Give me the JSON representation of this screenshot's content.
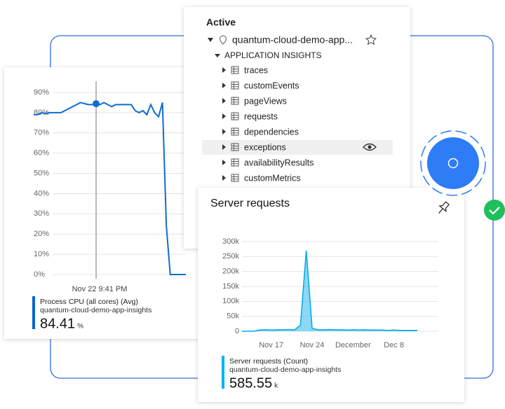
{
  "tree": {
    "heading": "Active",
    "root": "quantum-cloud-demo-app...",
    "group": "APPLICATION INSIGHTS",
    "items": [
      "traces",
      "customEvents",
      "pageViews",
      "requests",
      "dependencies",
      "exceptions",
      "availabilityResults",
      "customMetrics"
    ]
  },
  "chart_data": [
    {
      "type": "line",
      "color": "#0f6cd0",
      "values": [
        79,
        79,
        80,
        79.5,
        80,
        80,
        80,
        80,
        81,
        82,
        83,
        84,
        85,
        84.5,
        84,
        84,
        84.41,
        84,
        85,
        84,
        83,
        84,
        84,
        84,
        84,
        84,
        81,
        80,
        81,
        79,
        84,
        80,
        78,
        85,
        24,
        0,
        0,
        0,
        0,
        0
      ],
      "ylim": [
        0,
        90
      ],
      "yticks": [
        {
          "value": 0,
          "label": "0%"
        },
        {
          "value": 10,
          "label": "10%"
        },
        {
          "value": 20,
          "label": "20%"
        },
        {
          "value": 30,
          "label": "30%"
        },
        {
          "value": 40,
          "label": "40%"
        },
        {
          "value": 50,
          "label": "50%"
        },
        {
          "value": 60,
          "label": "60%"
        },
        {
          "value": 70,
          "label": "70%"
        },
        {
          "value": 80,
          "label": "80%"
        },
        {
          "value": 90,
          "label": "90%"
        }
      ],
      "grid": true,
      "crosshair_label": "Nov 22 9:41 PM",
      "summary": {
        "label": "Process CPU (all cores) (Avg)",
        "resource": "quantum-cloud-demo-app-insights",
        "value": 84.41,
        "unit": "%"
      }
    },
    {
      "type": "area",
      "title": "Server requests",
      "color": "#00a8e8",
      "categories": [
        null,
        null,
        null,
        null,
        null,
        "Nov 17",
        null,
        null,
        null,
        null,
        null,
        null,
        "Nov 24",
        null,
        null,
        null,
        null,
        null,
        null,
        "December",
        null,
        null,
        null,
        null,
        null,
        null,
        "Dec 8",
        null,
        null,
        null,
        null
      ],
      "values": [
        0,
        0,
        0,
        4000,
        5000,
        4000,
        5000,
        5000,
        6000,
        5000,
        20000,
        270000,
        10000,
        5000,
        5000,
        6000,
        5000,
        5000,
        4000,
        5000,
        4000,
        5000,
        4000,
        4000,
        4000,
        3000,
        4000,
        3000,
        3000,
        3000,
        3000
      ],
      "ylim": [
        0,
        300000
      ],
      "yticks": [
        0,
        {
          "value": 50000,
          "label": "50k"
        },
        {
          "value": 100000,
          "label": "100k"
        },
        {
          "value": 150000,
          "label": "150k"
        },
        {
          "value": 200000,
          "label": "200k"
        },
        {
          "value": 250000,
          "label": "250k"
        },
        {
          "value": 300000,
          "label": "300k"
        }
      ],
      "grid": true,
      "summary": {
        "label": "Server requests (Count)",
        "resource": "quantum-cloud-demo-app-insights",
        "value": 585.55,
        "unit": "k"
      }
    }
  ]
}
